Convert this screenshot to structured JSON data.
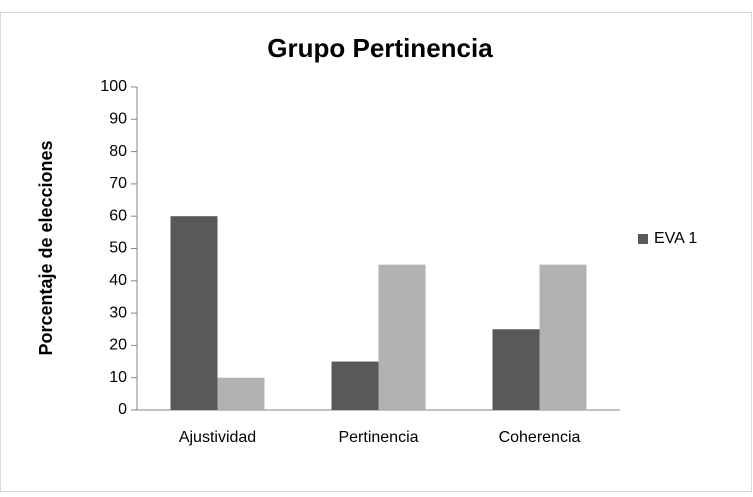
{
  "chart_data": {
    "type": "bar",
    "title": "Grupo Pertinencia",
    "y_label": "Porcentaje de elecciones",
    "categories": [
      "Ajustividad",
      "Pertinencia",
      "Coherencia"
    ],
    "series": [
      {
        "name": "EVA 1",
        "color": "#595959",
        "values": [
          60,
          15,
          25
        ]
      },
      {
        "color": "#b2b2b2",
        "values": [
          10,
          45,
          45
        ]
      }
    ],
    "ylim": [
      0,
      100
    ],
    "yticks": [
      0,
      10,
      20,
      30,
      40,
      50,
      60,
      70,
      80,
      90,
      100
    ],
    "grid": false,
    "legend": "right"
  }
}
